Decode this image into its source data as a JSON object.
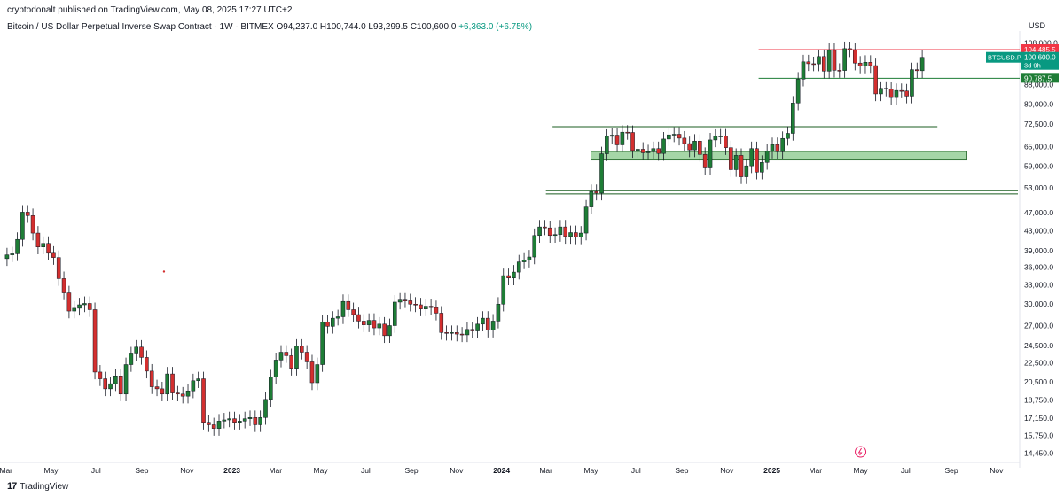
{
  "header": {
    "published": "cryptodonalt published on TradingView.com, May 08, 2025 17:27 UTC+2",
    "symbol_desc": "Bitcoin / US Dollar Perpetual Inverse Swap Contract · 1W · BITMEX",
    "ohlc": "O94,237.0  H100,744.0  L93,299.5  C100,600.0",
    "change": "+6,363.0 (+6.75%)"
  },
  "axis": {
    "currency": "USD"
  },
  "brand": {
    "name": "TradingView",
    "logo": "17"
  },
  "price_tags": [
    {
      "label": "104,485.5",
      "color": "#f23645",
      "value": 104485.5
    },
    {
      "label": "100,600.0",
      "sub": "3d 9h",
      "color": "#089981",
      "value": 100600
    },
    {
      "label": "90,787.5",
      "color": "#1e7d36",
      "value": 90787.5
    }
  ],
  "symbol_tag": {
    "label": "BTCUSD.P",
    "color": "#089981"
  },
  "chart_data": {
    "type": "candlestick",
    "scale": "log",
    "yticks": [
      14450,
      15750,
      17150,
      18750,
      20500,
      22500,
      24500,
      27000,
      30000,
      33000,
      36000,
      39000,
      43000,
      47000,
      53000,
      59000,
      65000,
      72500,
      80000,
      88000,
      108000
    ],
    "ytick_labels": [
      "14,450.0",
      "15,750.0",
      "17,150.0",
      "18,750.0",
      "20,500.0",
      "22,500.0",
      "24,500.0",
      "27,000.0",
      "30,000.0",
      "33,000.0",
      "36,000.0",
      "39,000.0",
      "43,000.0",
      "47,000.0",
      "53,000.0",
      "59,000.0",
      "65,000.0",
      "72,500.0",
      "80,000.0",
      "88,000.0",
      "108,000.0"
    ],
    "ylim": [
      13800,
      112000
    ],
    "xlim": [
      "2022-02-27",
      "2025-11-30"
    ],
    "xticks": [
      {
        "date": "2022-03-01",
        "label": "Mar",
        "bold": false
      },
      {
        "date": "2022-05-01",
        "label": "May",
        "bold": false
      },
      {
        "date": "2022-07-01",
        "label": "Jul",
        "bold": false
      },
      {
        "date": "2022-09-01",
        "label": "Sep",
        "bold": false
      },
      {
        "date": "2022-11-01",
        "label": "Nov",
        "bold": false
      },
      {
        "date": "2023-01-01",
        "label": "2023",
        "bold": true
      },
      {
        "date": "2023-03-01",
        "label": "Mar",
        "bold": false
      },
      {
        "date": "2023-05-01",
        "label": "May",
        "bold": false
      },
      {
        "date": "2023-07-01",
        "label": "Jul",
        "bold": false
      },
      {
        "date": "2023-09-01",
        "label": "Sep",
        "bold": false
      },
      {
        "date": "2023-11-01",
        "label": "Nov",
        "bold": false
      },
      {
        "date": "2024-01-01",
        "label": "2024",
        "bold": true
      },
      {
        "date": "2024-03-01",
        "label": "Mar",
        "bold": false
      },
      {
        "date": "2024-05-01",
        "label": "May",
        "bold": false
      },
      {
        "date": "2024-07-01",
        "label": "Jul",
        "bold": false
      },
      {
        "date": "2024-09-01",
        "label": "Sep",
        "bold": false
      },
      {
        "date": "2024-11-01",
        "label": "Nov",
        "bold": false
      },
      {
        "date": "2025-01-01",
        "label": "2025",
        "bold": true
      },
      {
        "date": "2025-03-01",
        "label": "Mar",
        "bold": false
      },
      {
        "date": "2025-05-01",
        "label": "May",
        "bold": false
      },
      {
        "date": "2025-07-01",
        "label": "Jul",
        "bold": false
      },
      {
        "date": "2025-09-01",
        "label": "Sep",
        "bold": false
      },
      {
        "date": "2025-11-01",
        "label": "Nov",
        "bold": false
      }
    ],
    "colors": {
      "up": "#1e7d36",
      "down": "#d32f2f",
      "line_red": "#f23645",
      "line_green": "#1e7d36",
      "zone_fill": "#a5d6a7"
    },
    "first_week": "2022-02-27",
    "weekly_close": [
      38200,
      38400,
      41200,
      47100,
      46300,
      42500,
      39700,
      40400,
      38500,
      37700,
      34000,
      31700,
      29000,
      29400,
      29900,
      30100,
      29200,
      21500,
      20800,
      19800,
      20300,
      21100,
      19300,
      22300,
      23500,
      24300,
      23100,
      21600,
      20000,
      19800,
      19300,
      21300,
      19400,
      19300,
      19100,
      19600,
      20600,
      20800,
      16800,
      16600,
      16300,
      16900,
      17000,
      17100,
      16800,
      16900,
      17100,
      17200,
      16600,
      17200,
      18800,
      21000,
      22800,
      23700,
      23300,
      21900,
      24400,
      23700,
      22600,
      20400,
      22300,
      27500,
      26900,
      28000,
      28200,
      30400,
      29200,
      28500,
      27600,
      27100,
      27700,
      26700,
      27200,
      25700,
      27000,
      30300,
      30600,
      30500,
      30000,
      29900,
      29300,
      29700,
      29500,
      28700,
      26100,
      26000,
      26100,
      25900,
      25800,
      26500,
      26300,
      27200,
      28000,
      26400,
      27600,
      30000,
      34500,
      34100,
      35100,
      36900,
      37200,
      37800,
      42000,
      43800,
      43600,
      42000,
      42200,
      43800,
      41800,
      42600,
      41700,
      42500,
      48300,
      52100,
      51700,
      62700,
      68300,
      68700,
      65500,
      69700,
      69600,
      63700,
      64100,
      63000,
      63300,
      64300,
      62800,
      67400,
      68800,
      69000,
      67700,
      65900,
      63900,
      66700,
      62500,
      58500,
      67100,
      68300,
      68400,
      64600,
      58000,
      62200,
      56000,
      59100,
      64300,
      57300,
      60100,
      63500,
      65600,
      63300,
      67600,
      69300,
      80400,
      90400,
      98400,
      97500,
      97400,
      101000,
      94000,
      104100,
      94400,
      94300,
      105000,
      104400,
      97800,
      96400,
      98200,
      96600,
      84100,
      86400,
      86100,
      82600,
      85500,
      85300,
      83200,
      94700,
      94200,
      100600
    ],
    "weekly_open_first": 37500
  }
}
